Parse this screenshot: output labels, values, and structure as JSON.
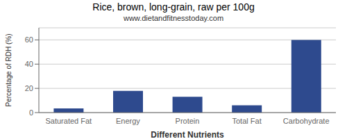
{
  "chart_data": {
    "type": "bar",
    "title": "Rice, brown, long-grain, raw per 100g",
    "subtitle": "www.dietandfitnesstoday.com",
    "xlabel": "Different Nutrients",
    "ylabel": "Percentage of RDH (%)",
    "categories": [
      "Saturated Fat",
      "Energy",
      "Protein",
      "Total Fat",
      "Carbohydrate"
    ],
    "values": [
      3.5,
      18,
      13,
      6,
      60
    ],
    "color": "#2e4a8e",
    "ylim": [
      0,
      70
    ],
    "yticks": [
      0,
      20,
      40,
      60
    ],
    "grid": true
  }
}
